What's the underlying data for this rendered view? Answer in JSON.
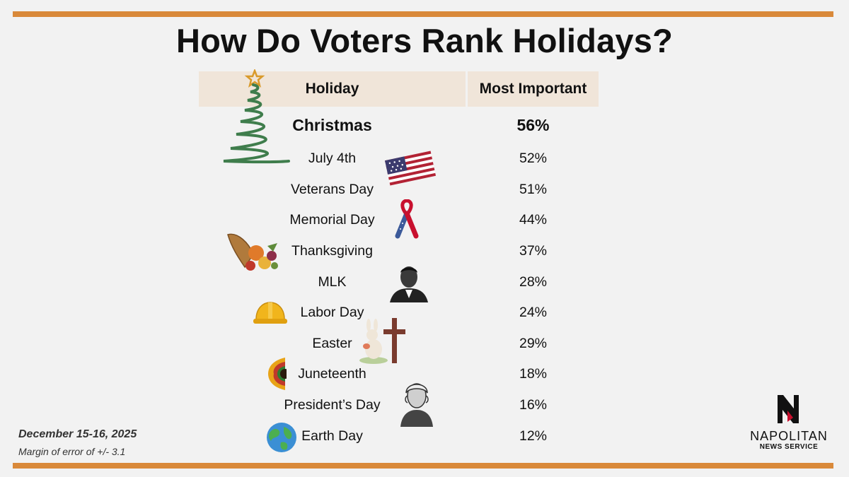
{
  "chart_data": {
    "type": "table",
    "title": "How Do Voters Rank Holidays?",
    "columns": [
      "Holiday",
      "Most Important"
    ],
    "rows": [
      {
        "holiday": "Christmas",
        "value": "56%"
      },
      {
        "holiday": "July 4th",
        "value": "52%"
      },
      {
        "holiday": "Veterans Day",
        "value": "51%"
      },
      {
        "holiday": "Memorial Day",
        "value": "44%"
      },
      {
        "holiday": "Thanksgiving",
        "value": "37%"
      },
      {
        "holiday": "MLK",
        "value": "28%"
      },
      {
        "holiday": "Labor Day",
        "value": "24%"
      },
      {
        "holiday": "Easter",
        "value": "29%"
      },
      {
        "holiday": "Juneteenth",
        "value": "18%"
      },
      {
        "holiday": "President’s Day",
        "value": "16%"
      },
      {
        "holiday": "Earth Day",
        "value": "12%"
      }
    ]
  },
  "footer": {
    "date": "December 15-16, 2025",
    "margin_of_error": "Margin of error of +/- 3.1"
  },
  "logo": {
    "name": "NAPOLITAN",
    "subtitle": "NEWS SERVICE"
  },
  "icons": [
    "christmas-tree-icon",
    "us-flag-icon",
    "ribbon-icon",
    "cornucopia-icon",
    "mlk-portrait-icon",
    "hard-hat-icon",
    "easter-bunny-cross-icon",
    "sunflower-icon",
    "washington-portrait-icon",
    "earth-globe-icon"
  ],
  "colors": {
    "accent_bar": "#d9893a",
    "header_fill": "#f0e5d9",
    "background": "#f2f2f2"
  }
}
